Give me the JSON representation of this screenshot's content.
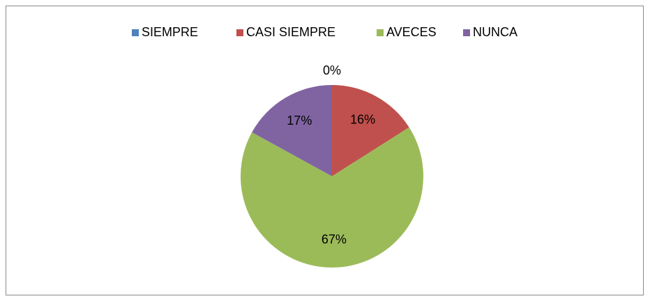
{
  "chart_data": {
    "type": "pie",
    "categories": [
      "SIEMPRE",
      "CASI SIEMPRE",
      "AVECES",
      "NUNCA"
    ],
    "values": [
      0,
      16,
      67,
      17
    ],
    "value_labels": [
      "0%",
      "16%",
      "67%",
      "17%"
    ],
    "colors": [
      "#4f81bd",
      "#c0504d",
      "#9bbb59",
      "#8064a2"
    ],
    "legend": "top"
  }
}
